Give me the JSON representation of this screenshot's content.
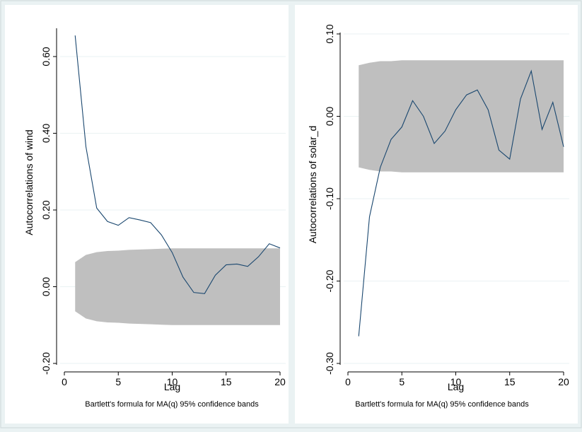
{
  "chart_data": [
    {
      "type": "line",
      "ylabel": "Autocorrelations of wind",
      "xlabel": "Lag",
      "note": "Bartlett's formula for MA(q) 95% confidence bands",
      "xlim": [
        0,
        20
      ],
      "ylim": [
        -0.2,
        0.67
      ],
      "xticks": [
        0,
        5,
        10,
        15,
        20
      ],
      "yticks": [
        -0.2,
        0.0,
        0.2,
        0.4,
        0.6
      ],
      "ytick_labels": [
        "-0.20",
        "0.00",
        "0.20",
        "0.40",
        "0.60"
      ],
      "grid": "horizontal",
      "x": [
        1,
        2,
        3,
        4,
        5,
        6,
        7,
        8,
        9,
        10,
        11,
        12,
        13,
        14,
        15,
        16,
        17,
        18,
        19,
        20
      ],
      "values": [
        0.655,
        0.365,
        0.205,
        0.17,
        0.16,
        0.18,
        0.174,
        0.167,
        0.135,
        0.089,
        0.025,
        -0.015,
        -0.018,
        0.03,
        0.057,
        0.059,
        0.053,
        0.078,
        0.112,
        0.101
      ],
      "band_upper": [
        0.064,
        0.083,
        0.09,
        0.093,
        0.094,
        0.096,
        0.097,
        0.098,
        0.099,
        0.1,
        0.1,
        0.1,
        0.1,
        0.1,
        0.1,
        0.1,
        0.1,
        0.1,
        0.1,
        0.1
      ],
      "band_lower": [
        -0.064,
        -0.083,
        -0.09,
        -0.093,
        -0.094,
        -0.096,
        -0.097,
        -0.098,
        -0.099,
        -0.1,
        -0.1,
        -0.1,
        -0.1,
        -0.1,
        -0.1,
        -0.1,
        -0.1,
        -0.1,
        -0.1,
        -0.1
      ],
      "line_color": "#1a476f",
      "band_color": "#bfbfbf"
    },
    {
      "type": "line",
      "ylabel": "Autocorrelations of solar_d",
      "xlabel": "Lag",
      "note": "Bartlett's formula for MA(q) 95% confidence bands",
      "xlim": [
        0,
        20
      ],
      "ylim": [
        -0.3,
        0.1
      ],
      "xticks": [
        0,
        5,
        10,
        15,
        20
      ],
      "yticks": [
        -0.3,
        -0.2,
        -0.1,
        0.0,
        0.1
      ],
      "ytick_labels": [
        "-0.30",
        "-0.20",
        "-0.10",
        "0.00",
        "0.10"
      ],
      "grid": "horizontal",
      "x": [
        1,
        2,
        3,
        4,
        5,
        6,
        7,
        8,
        9,
        10,
        11,
        12,
        13,
        14,
        15,
        16,
        17,
        18,
        19,
        20
      ],
      "values": [
        -0.267,
        -0.122,
        -0.062,
        -0.028,
        -0.013,
        0.019,
        0.0,
        -0.033,
        -0.018,
        0.008,
        0.026,
        0.032,
        0.008,
        -0.041,
        -0.052,
        0.021,
        0.055,
        -0.016,
        0.017,
        -0.037
      ],
      "band_upper": [
        0.062,
        0.065,
        0.067,
        0.067,
        0.068,
        0.068,
        0.068,
        0.068,
        0.068,
        0.068,
        0.068,
        0.068,
        0.068,
        0.068,
        0.068,
        0.068,
        0.068,
        0.068,
        0.068,
        0.068
      ],
      "band_lower": [
        -0.062,
        -0.065,
        -0.067,
        -0.067,
        -0.068,
        -0.068,
        -0.068,
        -0.068,
        -0.068,
        -0.068,
        -0.068,
        -0.068,
        -0.068,
        -0.068,
        -0.068,
        -0.068,
        -0.068,
        -0.068,
        -0.068,
        -0.068
      ],
      "line_color": "#1a476f",
      "band_color": "#bfbfbf"
    }
  ]
}
